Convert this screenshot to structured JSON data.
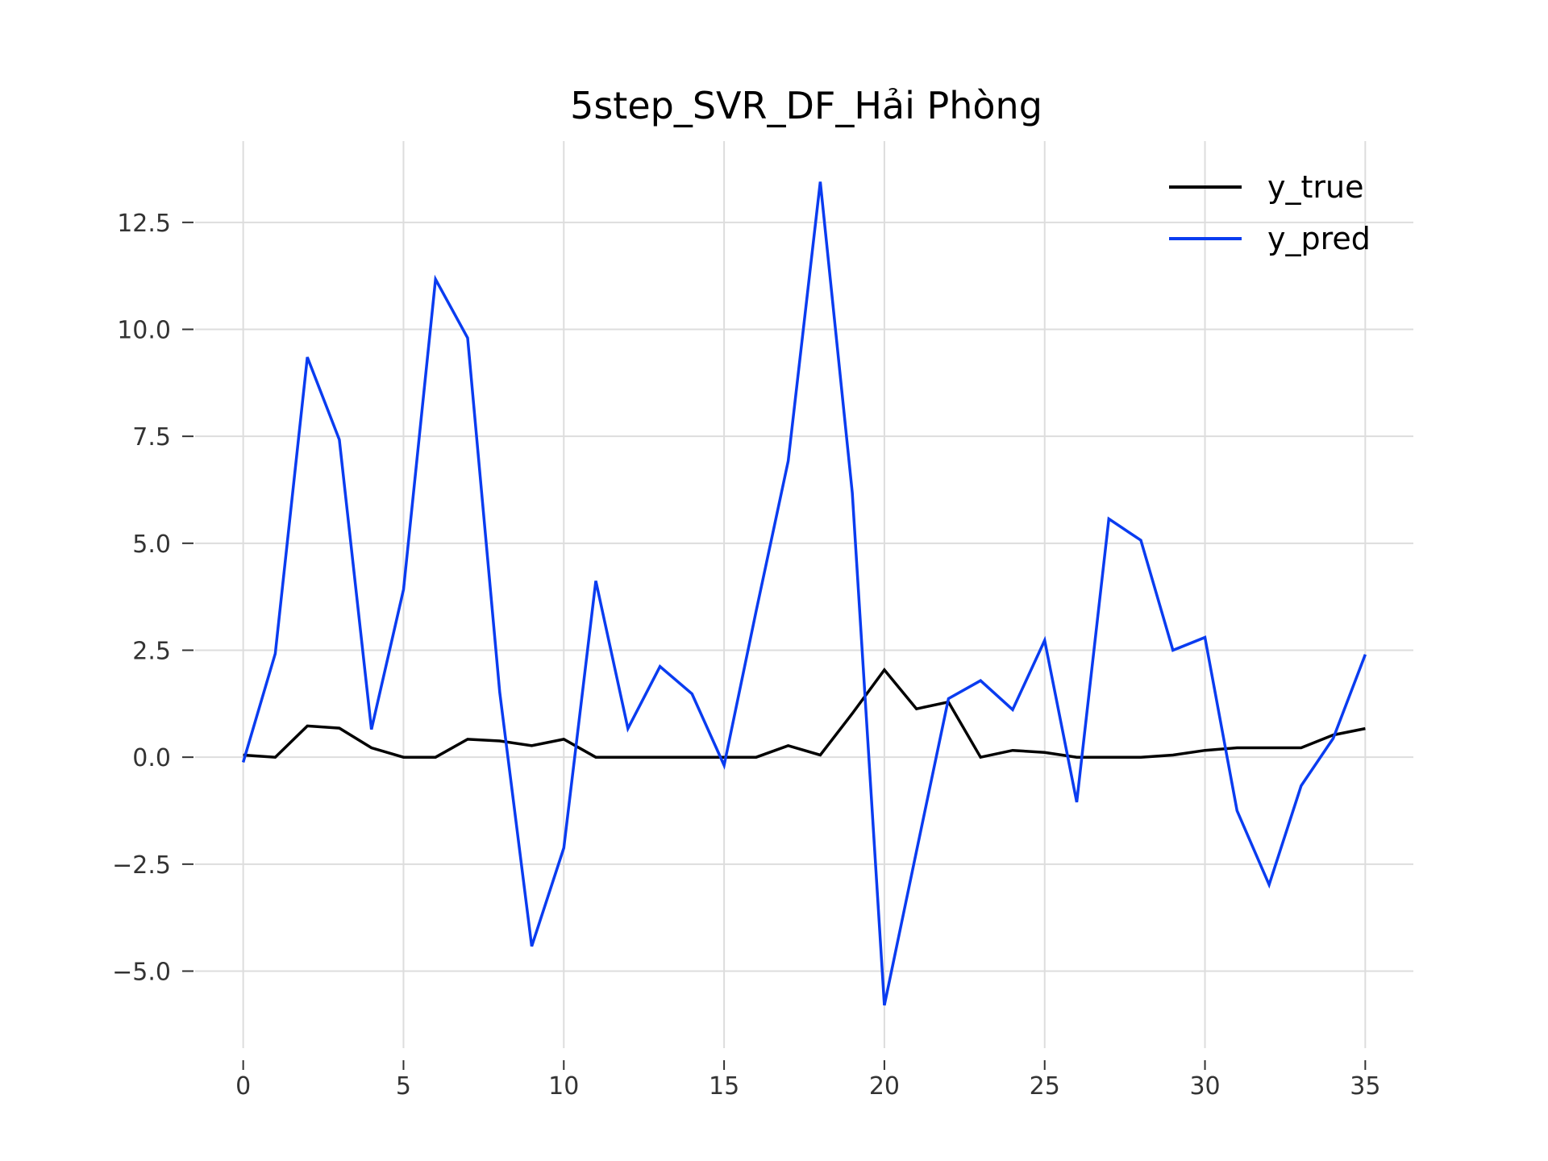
{
  "chart_data": {
    "type": "line",
    "title": "5step_SVR_DF_Hải Phòng",
    "xlabel": "",
    "ylabel": "",
    "xlim": [
      -1.5,
      36.5
    ],
    "ylim": [
      -6.8,
      14.4
    ],
    "x_ticks": [
      0,
      5,
      10,
      15,
      20,
      25,
      30,
      35
    ],
    "y_ticks": [
      -5.0,
      -2.5,
      0.0,
      2.5,
      5.0,
      7.5,
      10.0,
      12.5
    ],
    "x_tick_labels": [
      "0",
      "5",
      "10",
      "15",
      "20",
      "25",
      "30",
      "35"
    ],
    "y_tick_labels": [
      "−5.0",
      "−2.5",
      "0.0",
      "2.5",
      "5.0",
      "7.5",
      "10.0",
      "12.5"
    ],
    "grid": true,
    "legend_position": "top-right",
    "x": [
      0,
      1,
      2,
      3,
      4,
      5,
      6,
      7,
      8,
      9,
      10,
      11,
      12,
      13,
      14,
      15,
      16,
      17,
      18,
      19,
      20,
      21,
      22,
      23,
      24,
      25,
      26,
      27,
      28,
      29,
      30,
      31,
      32,
      33,
      34,
      35
    ],
    "series": [
      {
        "name": "y_true",
        "color": "#000000",
        "values": [
          0.05,
          0.0,
          0.73,
          0.68,
          0.22,
          0.0,
          0.0,
          0.42,
          0.38,
          0.27,
          0.42,
          0.0,
          0.0,
          0.0,
          0.0,
          0.0,
          0.0,
          0.27,
          0.05,
          1.02,
          2.04,
          1.13,
          1.29,
          0.0,
          0.16,
          0.11,
          0.0,
          0.0,
          0.0,
          0.05,
          0.16,
          0.22,
          0.22,
          0.22,
          0.52,
          0.67
        ]
      },
      {
        "name": "y_pred",
        "color": "#0a3cf0",
        "values": [
          -0.12,
          2.42,
          9.35,
          7.42,
          0.65,
          3.92,
          11.17,
          9.8,
          1.52,
          -4.42,
          -2.12,
          4.12,
          0.67,
          2.12,
          1.48,
          -0.19,
          3.42,
          6.92,
          13.45,
          6.18,
          -5.8,
          -2.2,
          1.37,
          1.79,
          1.11,
          2.73,
          -1.05,
          5.57,
          5.07,
          2.5,
          2.8,
          -1.25,
          -2.98,
          -0.67,
          0.44,
          2.4
        ]
      }
    ]
  }
}
